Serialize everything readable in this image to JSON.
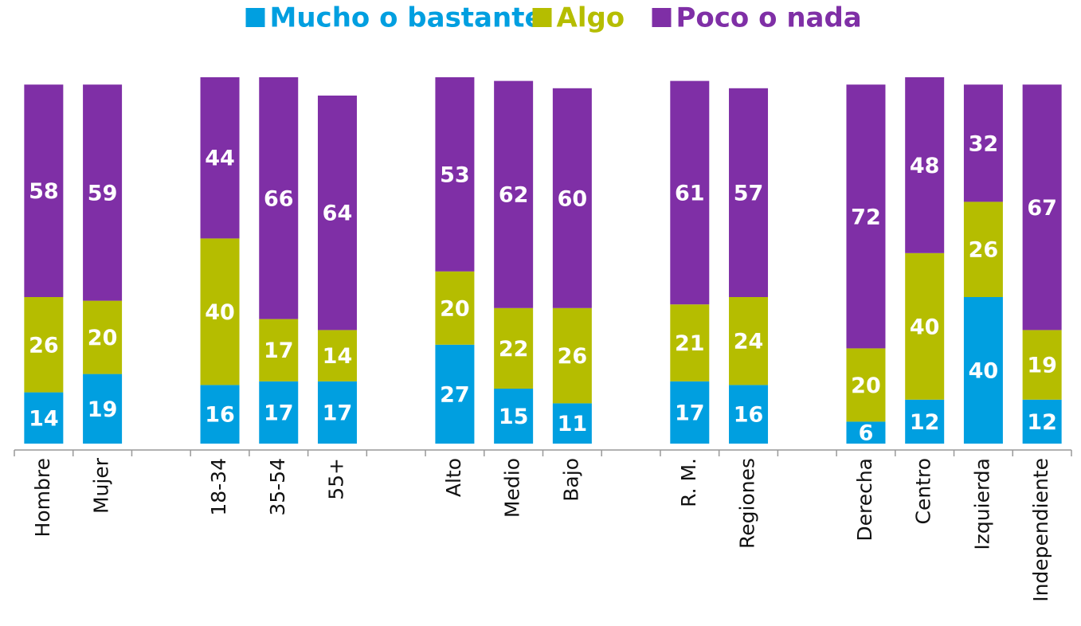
{
  "chart_data": {
    "type": "stacked_bar",
    "categories": [
      "Hombre",
      "Mujer",
      null,
      "18-34",
      "35-54",
      "55+",
      null,
      "Alto",
      "Medio",
      "Bajo",
      null,
      "R. M.",
      "Regiones",
      null,
      "Derecha",
      "Centro",
      "Izquierda",
      "Independiente"
    ],
    "series": [
      {
        "name": "Mucho o bastante",
        "color": "#009fe0",
        "values": [
          14,
          19,
          null,
          16,
          17,
          17,
          null,
          27,
          15,
          11,
          null,
          17,
          16,
          null,
          6,
          12,
          40,
          12
        ]
      },
      {
        "name": "Algo",
        "color": "#b5bd00",
        "values": [
          26,
          20,
          null,
          40,
          17,
          14,
          null,
          20,
          22,
          26,
          null,
          21,
          24,
          null,
          20,
          40,
          26,
          19
        ]
      },
      {
        "name": "Poco o nada",
        "color": "#7f2fa6",
        "values": [
          58,
          59,
          null,
          44,
          66,
          64,
          null,
          53,
          62,
          60,
          null,
          61,
          57,
          null,
          72,
          48,
          32,
          67
        ]
      }
    ],
    "ylim": [
      0,
      100
    ],
    "legend": "top"
  }
}
